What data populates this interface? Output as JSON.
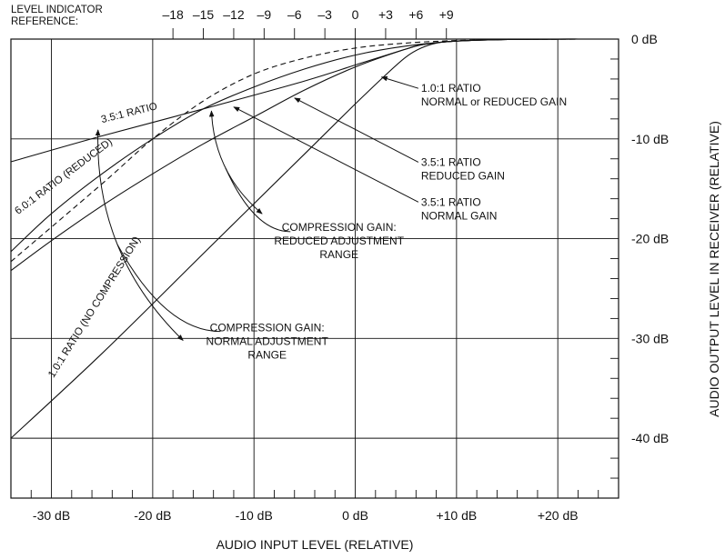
{
  "chart_data": {
    "type": "line",
    "xlabel": "AUDIO INPUT LEVEL (RELATIVE)",
    "ylabel": "AUDIO OUTPUT LEVEL IN RECEIVER (RELATIVE)",
    "xlim": [
      -34,
      26
    ],
    "ylim": [
      -46,
      0
    ],
    "grid": true,
    "x_ticks": [
      {
        "value": -30,
        "label": "-30 dB"
      },
      {
        "value": -20,
        "label": "-20 dB"
      },
      {
        "value": -10,
        "label": "-10 dB"
      },
      {
        "value": 0,
        "label": "0 dB"
      },
      {
        "value": 10,
        "label": "+10 dB"
      },
      {
        "value": 20,
        "label": "+20 dB"
      }
    ],
    "y_ticks": [
      {
        "value": 0,
        "label": "0 dB"
      },
      {
        "value": -10,
        "label": "-10 dB"
      },
      {
        "value": -20,
        "label": "-20 dB"
      },
      {
        "value": -30,
        "label": "-30 dB"
      },
      {
        "value": -40,
        "label": "-40 dB"
      }
    ],
    "level_indicator": {
      "label_line1": "LEVEL INDICATOR",
      "label_line2": "REFERENCE:",
      "ticks": [
        {
          "label": "–18",
          "x": -18
        },
        {
          "label": "–15",
          "x": -15
        },
        {
          "label": "–12",
          "x": -12
        },
        {
          "label": "–9",
          "x": -9
        },
        {
          "label": "–6",
          "x": -6
        },
        {
          "label": "–3",
          "x": -3
        },
        {
          "label": "0",
          "x": 0
        },
        {
          "label": "+3",
          "x": 3
        },
        {
          "label": "+6",
          "x": 6
        },
        {
          "label": "+9",
          "x": 9
        }
      ]
    },
    "series": [
      {
        "name": "1.0:1 RATIO (NO COMPRESSION)",
        "style": "solid",
        "x": [
          -34,
          -25,
          -15,
          -5,
          0,
          3,
          5,
          6.5,
          8,
          10,
          15,
          20,
          22
        ],
        "y": [
          -40,
          -31.5,
          -21.5,
          -11.5,
          -6.5,
          -3.6,
          -1.8,
          -0.9,
          -0.4,
          -0.2,
          -0.05,
          0,
          0
        ]
      },
      {
        "name": "3.5:1 RATIO",
        "style": "solid",
        "x": [
          -34,
          -25,
          -15,
          -5,
          0,
          5,
          7,
          10,
          15,
          22
        ],
        "y": [
          -12.3,
          -9.7,
          -7.0,
          -4.2,
          -2.6,
          -1.0,
          -0.5,
          -0.2,
          -0.05,
          0
        ]
      },
      {
        "name": "6.0:1 RATIO (REDUCED)",
        "style": "dashed",
        "x": [
          -34,
          -25,
          -20,
          -15,
          -10,
          -5,
          0,
          5,
          10,
          15,
          22
        ],
        "y": [
          -22.3,
          -14.5,
          -10.0,
          -6.2,
          -3.5,
          -1.9,
          -0.9,
          -0.4,
          -0.15,
          -0.05,
          0
        ]
      },
      {
        "name": "3.5:1 RATIO REDUCED GAIN",
        "style": "solid",
        "x": [
          -34,
          -30,
          -25,
          -20,
          -15,
          -10,
          -5,
          0,
          5,
          10,
          15,
          22
        ],
        "y": [
          -21.3,
          -17.5,
          -13.5,
          -10.0,
          -7.0,
          -4.8,
          -3.0,
          -1.6,
          -0.7,
          -0.2,
          -0.05,
          0
        ]
      },
      {
        "name": "3.5:1 RATIO NORMAL GAIN",
        "style": "solid",
        "x": [
          -34,
          -30,
          -25,
          -20,
          -15,
          -10,
          -5,
          0,
          5,
          7,
          10,
          15,
          22
        ],
        "y": [
          -23.2,
          -20.2,
          -16.7,
          -13.5,
          -10.5,
          -7.8,
          -5.1,
          -2.8,
          -1.0,
          -0.5,
          -0.2,
          -0.05,
          0
        ]
      }
    ],
    "annotations": [
      {
        "id": "ratio-35",
        "lines": [
          "3.5:1 RATIO"
        ],
        "anchor": "start",
        "rotate": -14,
        "x": -25,
        "y": -8.4
      },
      {
        "id": "ratio-60-reduced",
        "lines": [
          "6.0:1 RATIO (REDUCED)"
        ],
        "anchor": "start",
        "rotate": -37,
        "x": -33.3,
        "y": -17.6
      },
      {
        "id": "ratio-10-no-comp",
        "lines": [
          "1.0:1 RATIO (NO COMPRESSION)"
        ],
        "anchor": "start",
        "rotate": -58,
        "x": -29.8,
        "y": -34.0
      },
      {
        "id": "callout-10-normal-reduced",
        "lines": [
          "1.0:1 RATIO",
          "NORMAL or REDUCED GAIN"
        ],
        "anchor": "start",
        "x": 6.5,
        "y": -5.3,
        "arrow_to": [
          2.6,
          -3.8
        ]
      },
      {
        "id": "callout-35-reduced",
        "lines": [
          "3.5:1 RATIO",
          "REDUCED GAIN"
        ],
        "anchor": "start",
        "x": 6.5,
        "y": -12.7,
        "arrow_to": [
          -6.0,
          -5.9
        ]
      },
      {
        "id": "callout-35-normal",
        "lines": [
          "3.5:1 RATIO",
          "NORMAL GAIN"
        ],
        "anchor": "start",
        "x": 6.5,
        "y": -16.7,
        "arrow_to": [
          -12.0,
          -6.8
        ]
      },
      {
        "id": "callout-compression-reduced",
        "lines": [
          "COMPRESSION GAIN:",
          "REDUCED ADJUSTMENT",
          "RANGE"
        ],
        "anchor": "middle",
        "x": -1.6,
        "y": -19.2
      },
      {
        "id": "callout-compression-normal",
        "lines": [
          "COMPRESSION GAIN:",
          "NORMAL ADJUSTMENT",
          "RANGE"
        ],
        "anchor": "middle",
        "x": -8.7,
        "y": -29.3
      }
    ],
    "range_arcs": [
      {
        "id": "arc-reduced",
        "from": [
          -14.2,
          -7.2
        ],
        "to": [
          -9.2,
          -17.5
        ],
        "label_hook": [
          -6.4,
          -19.3
        ]
      },
      {
        "id": "arc-normal",
        "from": [
          -25.4,
          -9.1
        ],
        "to": [
          -17.0,
          -30.2
        ],
        "label_hook": [
          -13.3,
          -29.3
        ]
      }
    ]
  }
}
